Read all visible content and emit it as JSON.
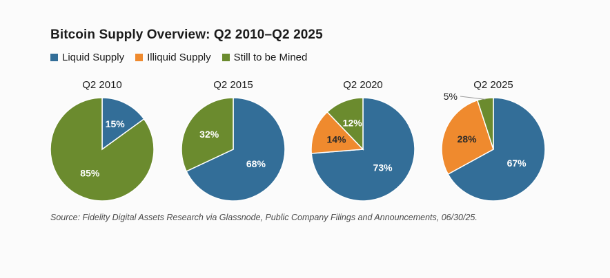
{
  "title": "Bitcoin Supply Overview: Q2 2010–Q2 2025",
  "legend": [
    {
      "label": "Liquid Supply",
      "color": "#336e98"
    },
    {
      "label": "Illiquid Supply",
      "color": "#ef8a2e"
    },
    {
      "label": "Still to be Mined",
      "color": "#6b8b2e"
    }
  ],
  "chart_data": [
    {
      "type": "pie",
      "title": "Q2 2010",
      "series": [
        {
          "name": "Liquid Supply",
          "value": 15,
          "label": "15%"
        },
        {
          "name": "Illiquid Supply",
          "value": 0,
          "label": ""
        },
        {
          "name": "Still to be Mined",
          "value": 85,
          "label": "85%"
        }
      ]
    },
    {
      "type": "pie",
      "title": "Q2 2015",
      "series": [
        {
          "name": "Liquid Supply",
          "value": 68,
          "label": "68%"
        },
        {
          "name": "Illiquid Supply",
          "value": 0,
          "label": ""
        },
        {
          "name": "Still to be Mined",
          "value": 32,
          "label": "32%"
        }
      ]
    },
    {
      "type": "pie",
      "title": "Q2 2020",
      "series": [
        {
          "name": "Liquid Supply",
          "value": 73,
          "label": "73%"
        },
        {
          "name": "Illiquid Supply",
          "value": 14,
          "label": "14%"
        },
        {
          "name": "Still to be Mined",
          "value": 12,
          "label": "12%"
        }
      ]
    },
    {
      "type": "pie",
      "title": "Q2 2025",
      "series": [
        {
          "name": "Liquid Supply",
          "value": 67,
          "label": "67%"
        },
        {
          "name": "Illiquid Supply",
          "value": 28,
          "label": "28%"
        },
        {
          "name": "Still to be Mined",
          "value": 5,
          "label": "5%"
        }
      ]
    }
  ],
  "source": "Source: Fidelity Digital Assets Research via Glassnode, Public Company Filings and Announcements, 06/30/25."
}
